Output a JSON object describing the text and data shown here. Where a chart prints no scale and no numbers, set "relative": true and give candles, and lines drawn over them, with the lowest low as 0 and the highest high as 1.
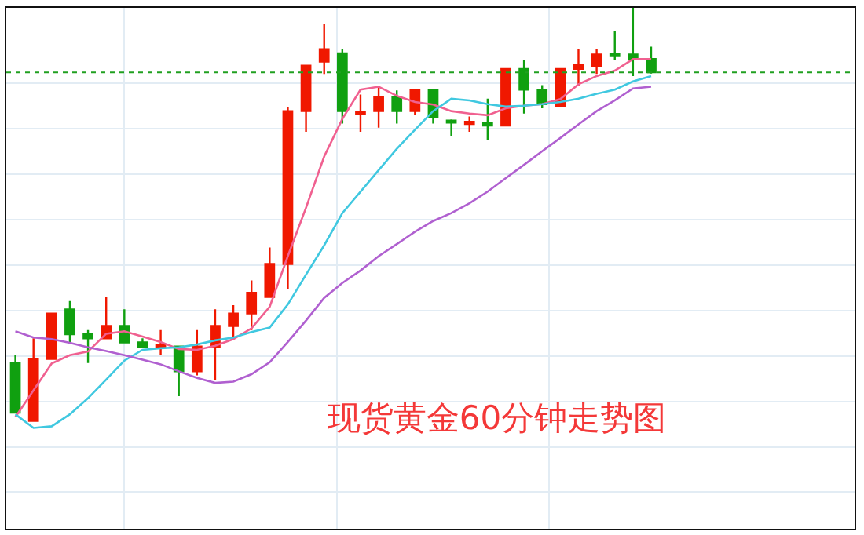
{
  "chart_data": {
    "type": "candlestick",
    "title": "现货黄金60分钟走势图",
    "relative": true,
    "grid": true,
    "categories": [
      null,
      null,
      null,
      null,
      null,
      null,
      null,
      null,
      null,
      null,
      null,
      null,
      null,
      null,
      null,
      null,
      null,
      null,
      null,
      null,
      null,
      null,
      null,
      null,
      null,
      null,
      null,
      null,
      null,
      null,
      null,
      null,
      null,
      null,
      null,
      null,
      null,
      null,
      null,
      null,
      null,
      null,
      null,
      null,
      null,
      null,
      null
    ],
    "ohlc": [
      [
        0.14,
        0.16,
        0.02,
        0.02
      ],
      [
        0,
        0.2,
        0,
        0.15
      ],
      [
        0.15,
        0.26,
        0.15,
        0.26
      ],
      [
        0.27,
        0.29,
        0.19,
        0.21
      ],
      [
        0.21,
        0.22,
        0.14,
        0.2
      ],
      [
        0.2,
        0.3,
        0.2,
        0.23
      ],
      [
        0.23,
        0.27,
        0.19,
        0.19
      ],
      [
        0.19,
        0.2,
        0.18,
        0.18
      ],
      [
        0.178,
        0.22,
        0.16,
        0.183
      ],
      [
        0.18,
        0.18,
        0.06,
        0.12
      ],
      [
        0.12,
        0.22,
        0.11,
        0.18
      ],
      [
        0.18,
        0.27,
        0.1,
        0.23
      ],
      [
        0.23,
        0.28,
        0.2,
        0.26
      ],
      [
        0.26,
        0.34,
        0.22,
        0.31
      ],
      [
        0.3,
        0.42,
        0.3,
        0.38
      ],
      [
        0.38,
        0.76,
        0.32,
        0.75
      ],
      [
        0.75,
        0.86,
        0.7,
        0.86
      ],
      [
        0.87,
        0.96,
        0.84,
        0.9
      ],
      [
        0.89,
        0.9,
        0.72,
        0.75
      ],
      [
        0.744,
        0.79,
        0.7,
        0.748
      ],
      [
        0.75,
        0.81,
        0.71,
        0.785
      ],
      [
        0.783,
        0.8,
        0.72,
        0.75
      ],
      [
        0.75,
        0.8,
        0.74,
        0.8
      ],
      [
        0.8,
        0.8,
        0.72,
        0.735
      ],
      [
        0.727,
        0.73,
        0.69,
        0.722
      ],
      [
        0.719,
        0.737,
        0.7,
        0.724
      ],
      [
        0.722,
        0.78,
        0.68,
        0.715
      ],
      [
        0.715,
        0.854,
        0.715,
        0.852
      ],
      [
        0.852,
        0.874,
        0.744,
        0.802
      ],
      [
        0.802,
        0.813,
        0.757,
        0.767
      ],
      [
        0.763,
        0.854,
        0.761,
        0.852
      ],
      [
        0.852,
        0.9,
        0.81,
        0.861
      ],
      [
        0.858,
        0.9,
        0.84,
        0.887
      ],
      [
        0.889,
        0.943,
        0.874,
        0.883
      ],
      [
        0.887,
        1.0,
        0.835,
        0.876
      ],
      [
        0.876,
        0.906,
        0.841,
        0.844
      ],
      null,
      null,
      null,
      null,
      null,
      null,
      null,
      null,
      null,
      null,
      null
    ],
    "series": [
      {
        "type": "line",
        "color": "#f06090",
        "values": [
          0.009,
          0.074,
          0.139,
          0.159,
          0.168,
          0.211,
          0.217,
          0.204,
          0.191,
          0.174,
          0.172,
          0.182,
          0.198,
          0.224,
          0.276,
          0.399,
          0.516,
          0.64,
          0.731,
          0.802,
          0.809,
          0.787,
          0.772,
          0.766,
          0.75,
          0.744,
          0.74,
          0.757,
          0.763,
          0.767,
          0.779,
          0.815,
          0.835,
          0.848,
          0.876,
          0.876,
          null,
          null,
          null,
          null,
          null,
          null,
          null,
          null,
          null,
          null,
          null
        ]
      },
      {
        "type": "line",
        "color": "#40c8e0",
        "values": [
          0.016,
          -0.017,
          -0.013,
          0.016,
          0.055,
          0.1,
          0.146,
          0.172,
          0.176,
          0.178,
          0.185,
          0.195,
          0.202,
          0.215,
          0.226,
          0.282,
          0.354,
          0.425,
          0.503,
          0.555,
          0.607,
          0.659,
          0.705,
          0.75,
          0.78,
          0.776,
          0.767,
          0.761,
          0.763,
          0.767,
          0.772,
          0.78,
          0.792,
          0.802,
          0.822,
          0.835,
          null,
          null,
          null,
          null,
          null,
          null,
          null,
          null,
          null,
          null,
          null
        ]
      },
      {
        "type": "line",
        "color": "#b060d0",
        "values": [
          0.217,
          0.202,
          0.198,
          0.189,
          0.178,
          0.169,
          0.159,
          0.148,
          0.137,
          0.12,
          0.104,
          0.092,
          0.095,
          0.113,
          0.142,
          0.191,
          0.243,
          0.298,
          0.334,
          0.364,
          0.399,
          0.428,
          0.458,
          0.484,
          0.503,
          0.527,
          0.555,
          0.588,
          0.62,
          0.653,
          0.685,
          0.718,
          0.75,
          0.776,
          0.805,
          0.809,
          null,
          null,
          null,
          null,
          null,
          null,
          null,
          null,
          null,
          null,
          null
        ]
      }
    ],
    "ref_lines": [
      {
        "axis": "y",
        "value": 0.844,
        "color": "#20a020",
        "line_style": "dotted"
      }
    ]
  }
}
